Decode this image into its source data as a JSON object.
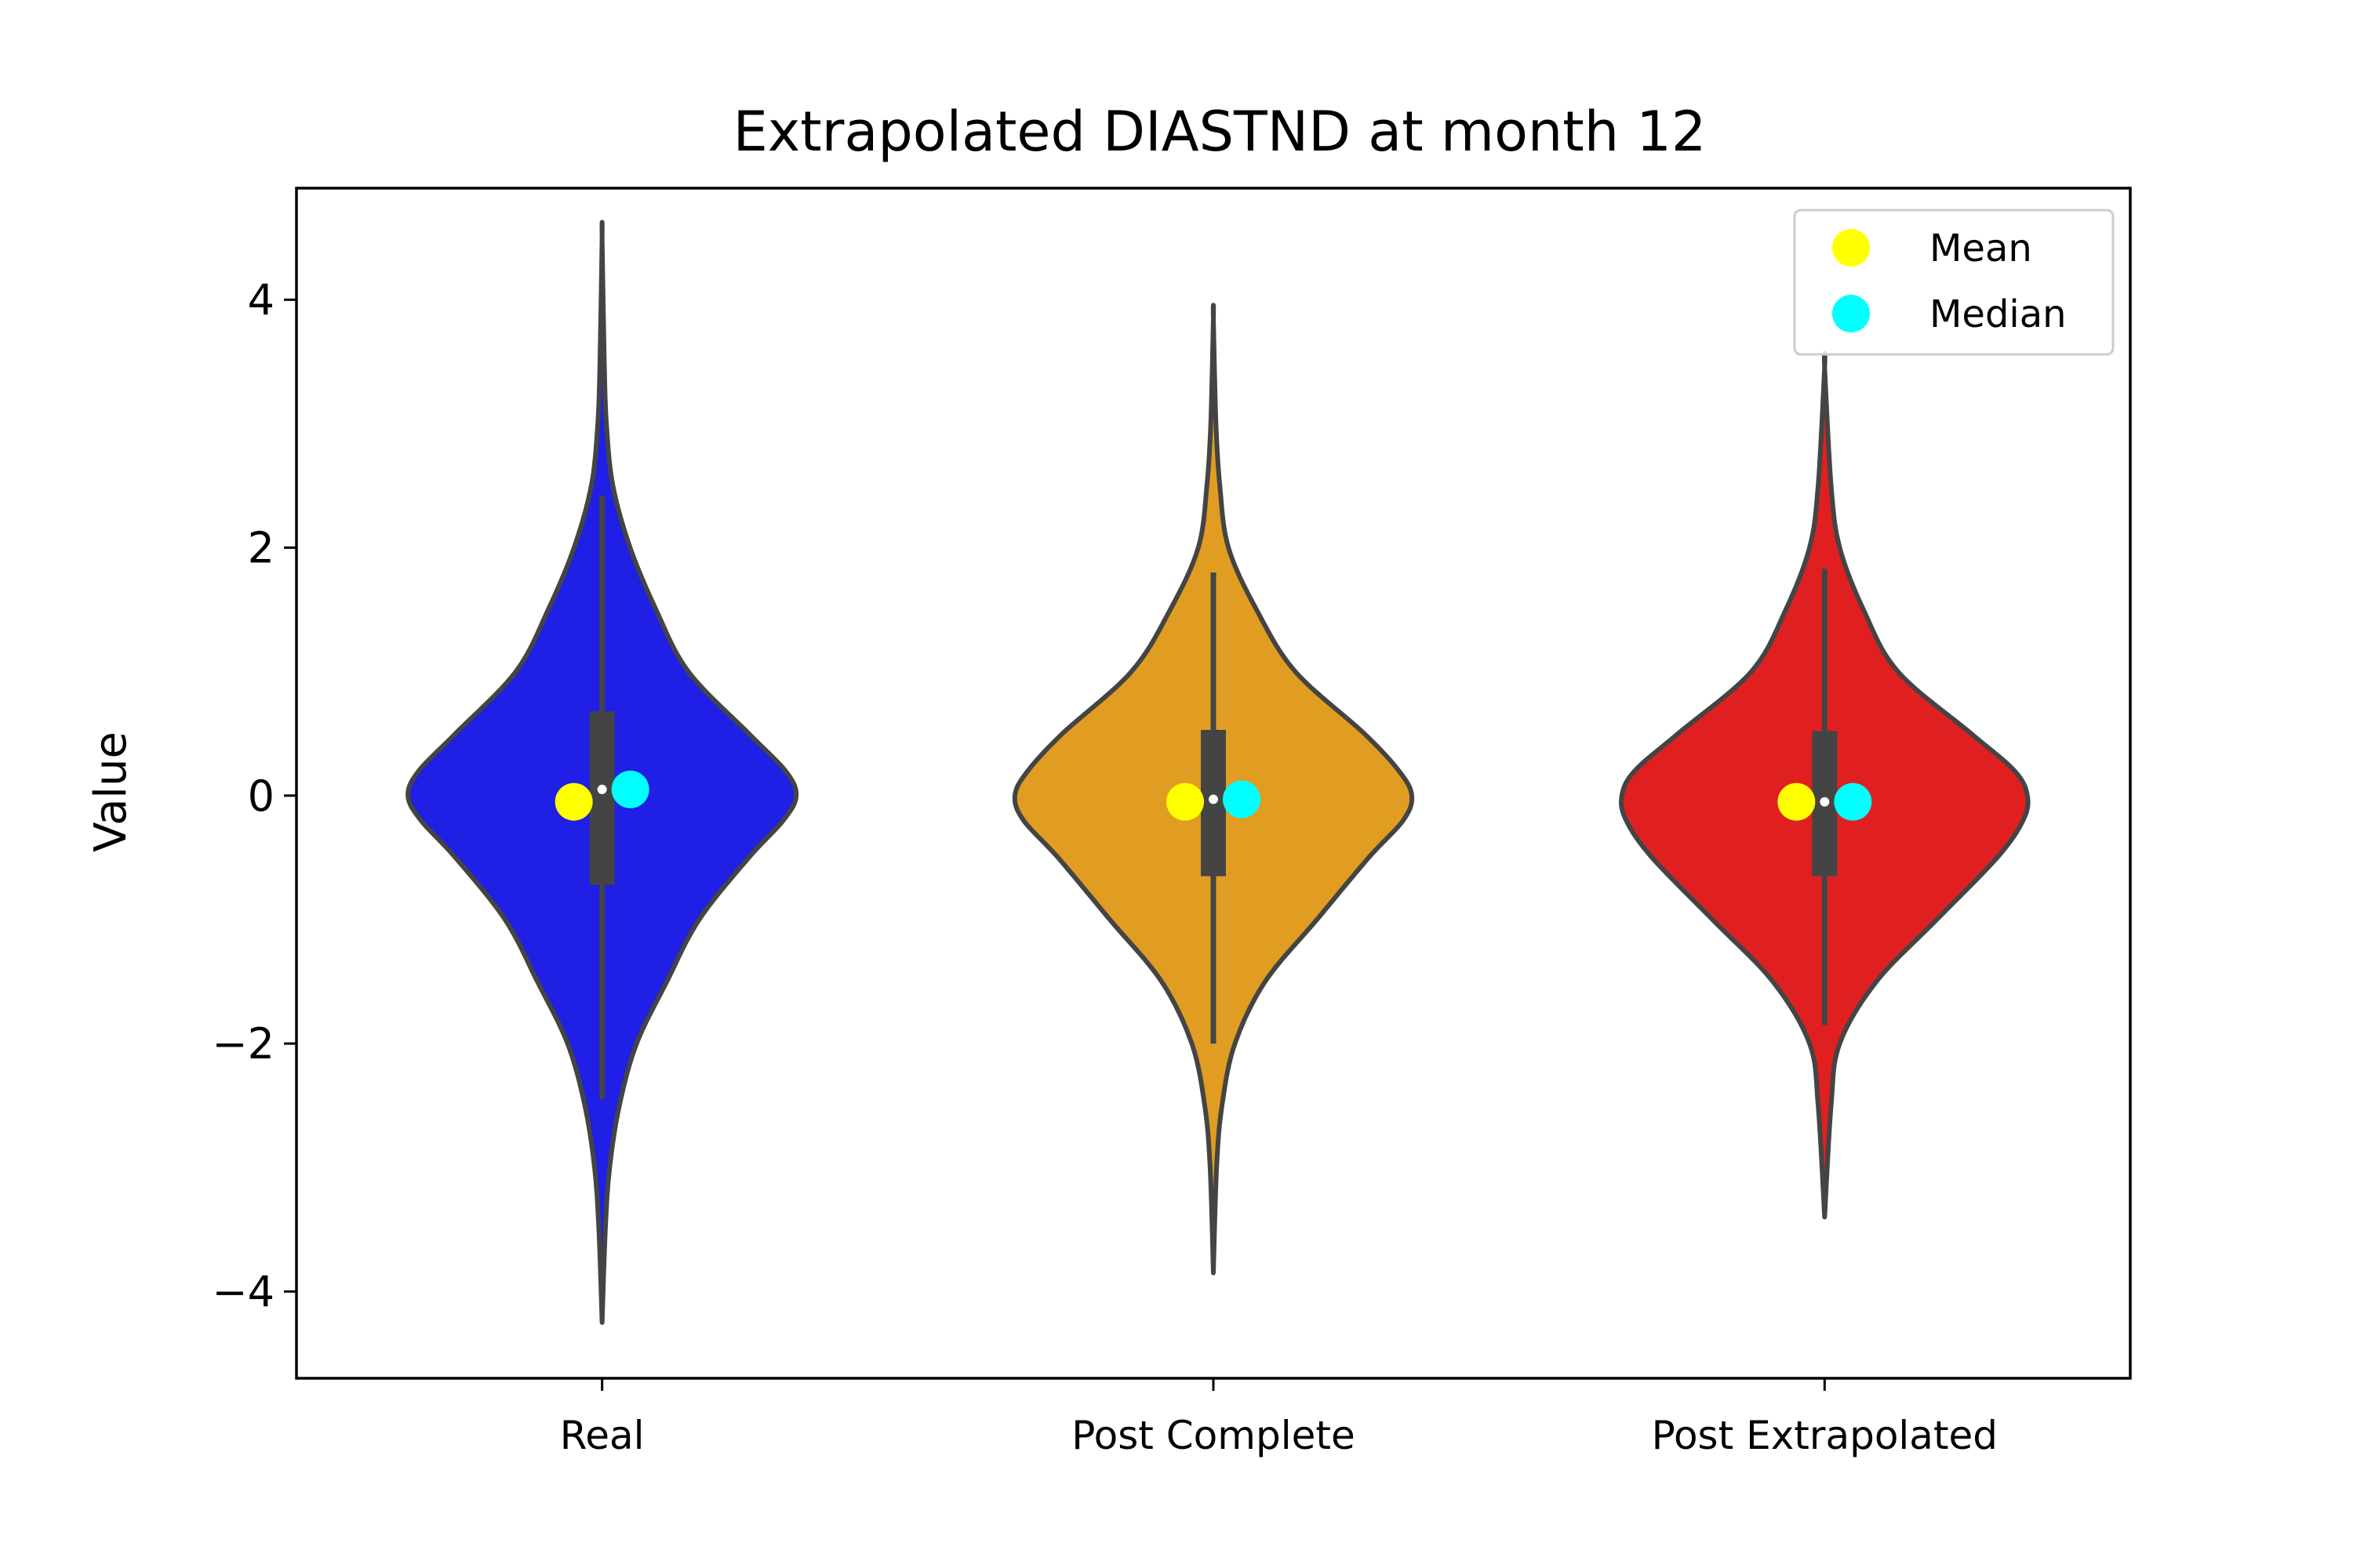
{
  "chart_data": {
    "type": "violin",
    "title": "Extrapolated DIASTND at month 12",
    "xlabel": "",
    "ylabel": "Value",
    "ylim": [
      -4.7,
      4.9
    ],
    "yticks": [
      -4,
      -2,
      0,
      2,
      4
    ],
    "ytick_labels": [
      "−4",
      "−2",
      "0",
      "2",
      "4"
    ],
    "grid": false,
    "legend": {
      "placement": "top-right",
      "entries": [
        {
          "label": "Mean",
          "color": "#ffff00"
        },
        {
          "label": "Median",
          "color": "#00ffff"
        }
      ]
    },
    "categories": [
      "Real",
      "Post Complete",
      "Post Extrapolated"
    ],
    "violins": [
      {
        "name": "Real",
        "color": "#1f1fe6",
        "min": -4.25,
        "max": 4.5,
        "q1": -0.72,
        "median": 0.05,
        "q3": 0.68,
        "whisker_low": -2.45,
        "whisker_high": 2.42,
        "mean": -0.05,
        "profile": [
          [
            -4.25,
            0.0
          ],
          [
            -3.5,
            0.015
          ],
          [
            -3.0,
            0.035
          ],
          [
            -2.5,
            0.08
          ],
          [
            -2.0,
            0.16
          ],
          [
            -1.5,
            0.3
          ],
          [
            -1.0,
            0.45
          ],
          [
            -0.5,
            0.68
          ],
          [
            -0.2,
            0.84
          ],
          [
            0.0,
            0.9
          ],
          [
            0.2,
            0.85
          ],
          [
            0.5,
            0.68
          ],
          [
            1.0,
            0.4
          ],
          [
            1.5,
            0.25
          ],
          [
            2.0,
            0.13
          ],
          [
            2.5,
            0.05
          ],
          [
            3.0,
            0.02
          ],
          [
            3.5,
            0.01
          ],
          [
            4.5,
            0.0
          ]
        ]
      },
      {
        "name": "Post Complete",
        "color": "#e09d22",
        "min": -3.85,
        "max": 3.85,
        "q1": -0.65,
        "median": -0.03,
        "q3": 0.53,
        "whisker_low": -2.0,
        "whisker_high": 1.8,
        "mean": -0.05,
        "profile": [
          [
            -3.85,
            0.0
          ],
          [
            -3.0,
            0.015
          ],
          [
            -2.5,
            0.04
          ],
          [
            -2.0,
            0.1
          ],
          [
            -1.5,
            0.24
          ],
          [
            -1.0,
            0.48
          ],
          [
            -0.5,
            0.72
          ],
          [
            -0.2,
            0.88
          ],
          [
            0.0,
            0.92
          ],
          [
            0.2,
            0.86
          ],
          [
            0.5,
            0.7
          ],
          [
            1.0,
            0.38
          ],
          [
            1.5,
            0.2
          ],
          [
            2.0,
            0.07
          ],
          [
            2.5,
            0.03
          ],
          [
            3.0,
            0.012
          ],
          [
            3.85,
            0.0
          ]
        ]
      },
      {
        "name": "Post Extrapolated",
        "color": "#e02020",
        "min": -3.4,
        "max": 3.45,
        "q1": -0.65,
        "median": -0.05,
        "q3": 0.52,
        "whisker_low": -1.85,
        "whisker_high": 1.83,
        "mean": -0.05,
        "profile": [
          [
            -3.4,
            0.0
          ],
          [
            -2.5,
            0.03
          ],
          [
            -2.0,
            0.07
          ],
          [
            -1.5,
            0.24
          ],
          [
            -1.0,
            0.52
          ],
          [
            -0.5,
            0.8
          ],
          [
            -0.2,
            0.92
          ],
          [
            0.0,
            0.94
          ],
          [
            0.2,
            0.88
          ],
          [
            0.5,
            0.68
          ],
          [
            1.0,
            0.34
          ],
          [
            1.5,
            0.18
          ],
          [
            2.0,
            0.07
          ],
          [
            2.5,
            0.03
          ],
          [
            3.45,
            0.0
          ]
        ]
      }
    ]
  }
}
